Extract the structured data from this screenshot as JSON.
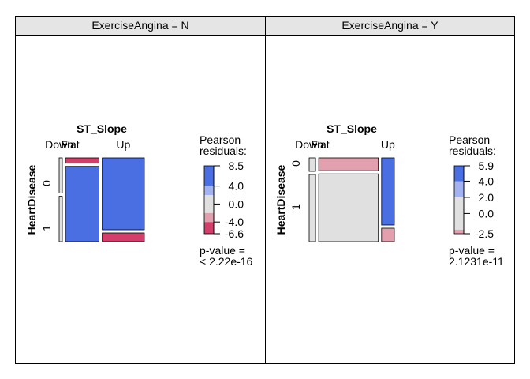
{
  "chart_data": [
    {
      "type": "mosaic",
      "strip_label": "ExerciseAngina = N",
      "col_var": "ST_Slope",
      "row_var": "HeartDisease",
      "col_levels": [
        "Down",
        "Flat",
        "Up"
      ],
      "row_levels": [
        "0",
        "1"
      ],
      "counts": [
        [
          7,
          17,
          297
        ],
        [
          9,
          242,
          36
        ]
      ],
      "residual_colors": [
        [
          "#e0e0e0",
          "#d33f6a",
          "#4a6fe3"
        ],
        [
          "#e0e0e0",
          "#4a6fe3",
          "#d33f6a"
        ]
      ],
      "legend_title": "Pearson\nresiduals:",
      "legend_ticks": [
        "8.5",
        "4.0",
        "0.0",
        "-4.0",
        "-6.6"
      ],
      "legend_range": [
        -6.6,
        8.5
      ],
      "p_value_label": "p-value =",
      "p_value": "< 2.22e-16"
    },
    {
      "type": "mosaic",
      "strip_label": "ExerciseAngina = Y",
      "col_var": "ST_Slope",
      "row_var": "HeartDisease",
      "col_levels": [
        "Down",
        "Flat",
        "Up"
      ],
      "row_levels": [
        "0",
        "1"
      ],
      "counts": [
        [
          7,
          62,
          70
        ],
        [
          35,
          329,
          14
        ]
      ],
      "residual_colors": [
        [
          "#e0e0e0",
          "#e2a0ae",
          "#4a6fe3"
        ],
        [
          "#e0e0e0",
          "#e0e0e0",
          "#e2a0ae"
        ]
      ],
      "legend_title": "Pearson\nresiduals:",
      "legend_ticks": [
        "5.9",
        "4.0",
        "2.0",
        "0.0",
        "-2.5"
      ],
      "legend_range": [
        -2.5,
        5.9
      ],
      "p_value_label": "p-value =",
      "p_value": "2.1231e-11"
    }
  ],
  "colors": {
    "strong_positive": "#4a6fe3",
    "weak_positive": "#a3b2f0",
    "neutral": "#e0e0e0",
    "weak_negative": "#e2a0ae",
    "strong_negative": "#d33f6a",
    "strip_background": "#e5e5e5"
  }
}
